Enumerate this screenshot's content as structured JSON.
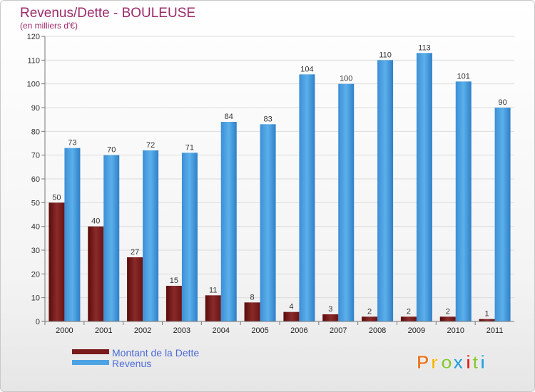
{
  "chart_data": {
    "type": "bar",
    "title": "Revenus/Dette - BOULEUSE",
    "subtitle": "(en milliers d'€)",
    "categories": [
      "2000",
      "2001",
      "2002",
      "2003",
      "2004",
      "2005",
      "2006",
      "2007",
      "2008",
      "2009",
      "2010",
      "2011"
    ],
    "series": [
      {
        "name": "Montant de la Dette",
        "values": [
          50,
          40,
          27,
          15,
          11,
          8,
          4,
          3,
          2,
          2,
          2,
          1
        ],
        "color": "#7a1a1a"
      },
      {
        "name": "Revenus",
        "values": [
          73,
          70,
          72,
          71,
          84,
          83,
          104,
          100,
          110,
          113,
          101,
          90
        ],
        "color": "#4da3e4"
      }
    ],
    "ylim": [
      0,
      120
    ],
    "yticks": [
      0,
      10,
      20,
      30,
      40,
      50,
      60,
      70,
      80,
      90,
      100,
      110,
      120
    ],
    "grid": true,
    "legend_position": "bottom-left"
  },
  "logo": {
    "text": "Proxiti",
    "colors": [
      "#e87722",
      "#f2b300",
      "#8dc63f",
      "#2b9fd8",
      "#e2231a",
      "#8dc63f",
      "#2b9fd8"
    ]
  }
}
